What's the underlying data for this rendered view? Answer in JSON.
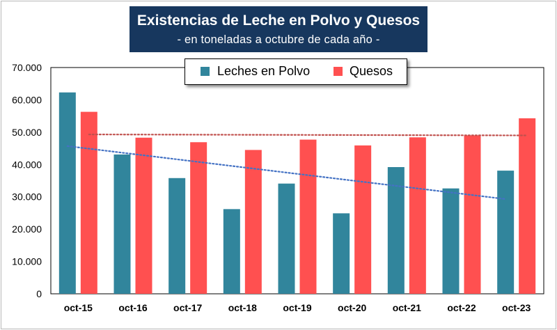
{
  "chart_data": {
    "type": "bar",
    "title": "Existencias de Leche en Polvo y Quesos",
    "subtitle": "- en toneladas a octubre de cada año -",
    "categories": [
      "oct-15",
      "oct-16",
      "oct-17",
      "oct-18",
      "oct-19",
      "oct-20",
      "oct-21",
      "oct-22",
      "oct-23"
    ],
    "series": [
      {
        "name": "Leches en Polvo",
        "color": "#31859c",
        "values": [
          62300,
          43100,
          35800,
          26200,
          34100,
          24900,
          39200,
          32600,
          38100
        ],
        "trendline": {
          "type": "linear",
          "start": 45700,
          "end": 29300,
          "color": "#4472c4"
        }
      },
      {
        "name": "Quesos",
        "color": "#ff5050",
        "values": [
          56300,
          48300,
          46900,
          44500,
          47700,
          45900,
          48400,
          49000,
          54300
        ],
        "trendline": {
          "type": "linear",
          "start": 49300,
          "end": 49000,
          "color": "#c0504d"
        }
      }
    ],
    "ylim": [
      0,
      70000
    ],
    "yticks": [
      0,
      10000,
      20000,
      30000,
      40000,
      50000,
      60000,
      70000
    ],
    "ytick_labels": [
      "0",
      "10.000",
      "20.000",
      "30.000",
      "40.000",
      "50.000",
      "60.000",
      "70.000"
    ],
    "xlabel": "",
    "ylabel": "",
    "grid": false,
    "legend": "top-center"
  }
}
